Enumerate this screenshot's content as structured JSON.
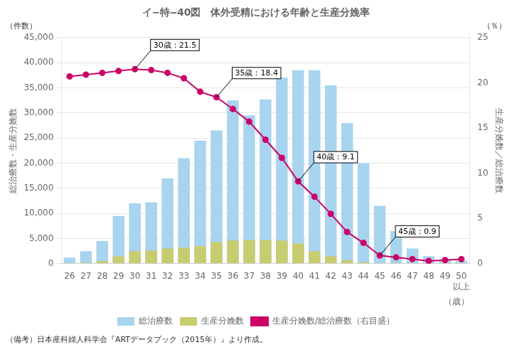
{
  "chart_data": {
    "type": "bar",
    "title": "イ−特‒40図　体外受精における年齢と生産分娩率",
    "categories": [
      "26",
      "27",
      "28",
      "29",
      "30",
      "31",
      "32",
      "33",
      "34",
      "35",
      "36",
      "37",
      "38",
      "39",
      "40",
      "41",
      "42",
      "43",
      "44",
      "45",
      "46",
      "47",
      "48",
      "49",
      "50\n以上"
    ],
    "series": [
      {
        "name": "総治療数",
        "type": "bar",
        "color": "#a8d4f0",
        "values": [
          1200,
          2500,
          4500,
          9500,
          12000,
          12200,
          17000,
          21000,
          24500,
          26500,
          32500,
          29500,
          32700,
          37000,
          38500,
          38500,
          35500,
          28000,
          20000,
          11500,
          6500,
          3000,
          1500,
          800,
          600
        ]
      },
      {
        "name": "生産分娩数",
        "type": "bar",
        "color": "#c8cc70",
        "values": [
          100,
          200,
          500,
          1500,
          2500,
          2600,
          3000,
          3200,
          3500,
          4300,
          4600,
          4700,
          4700,
          4600,
          4000,
          2500,
          1500,
          700,
          300,
          100,
          100,
          50,
          30,
          20,
          30
        ]
      },
      {
        "name": "生産分娩数/総治療数（右目盛）",
        "type": "line",
        "axis": "y2",
        "color": "#cc0066",
        "marker": "circle",
        "values": [
          20.7,
          20.9,
          21.1,
          21.3,
          21.5,
          21.4,
          21.1,
          20.5,
          19.0,
          18.4,
          17.1,
          15.7,
          13.7,
          11.7,
          9.1,
          7.4,
          5.5,
          3.5,
          2.3,
          0.9,
          0.7,
          0.5,
          0.3,
          0.4,
          0.5
        ]
      }
    ],
    "xlabel": "（歳）",
    "ylabel": "総治療数・生産分娩数",
    "y2label": "生産分娩数／総治療数",
    "y_unit": "（件数）",
    "y2_unit": "（％）",
    "note": "（備考）日本産科婦人科学会『ARTデータブック（2015年）』より作成。",
    "ylim": [
      0,
      45000
    ],
    "yticks": [
      0,
      {
        "value": 5000,
        "label": "5,000"
      },
      {
        "value": 10000,
        "label": "10,000"
      },
      {
        "value": 15000,
        "label": "15,000"
      },
      {
        "value": 20000,
        "label": "20,000"
      },
      {
        "value": 25000,
        "label": "25,000"
      },
      {
        "value": 30000,
        "label": "30,000"
      },
      {
        "value": 35000,
        "label": "35,000"
      },
      {
        "value": 40000,
        "label": "40,000"
      },
      {
        "value": 45000,
        "label": "45,000"
      }
    ],
    "y2lim": [
      0,
      25
    ],
    "y2ticks": [
      0,
      5,
      10,
      15,
      20,
      25
    ],
    "grid": "y",
    "legend": "bottom",
    "annotations": [
      {
        "text": "30歳：21.5",
        "x": "30",
        "y": 21.5,
        "axis": "y2"
      },
      {
        "text": "35歳：18.4",
        "x": "35",
        "y": 18.4,
        "axis": "y2"
      },
      {
        "text": "40歳：9.1",
        "x": "40",
        "y": 9.1,
        "axis": "y2"
      },
      {
        "text": "45歳：0.9",
        "x": "45",
        "y": 0.9,
        "axis": "y2"
      }
    ]
  }
}
